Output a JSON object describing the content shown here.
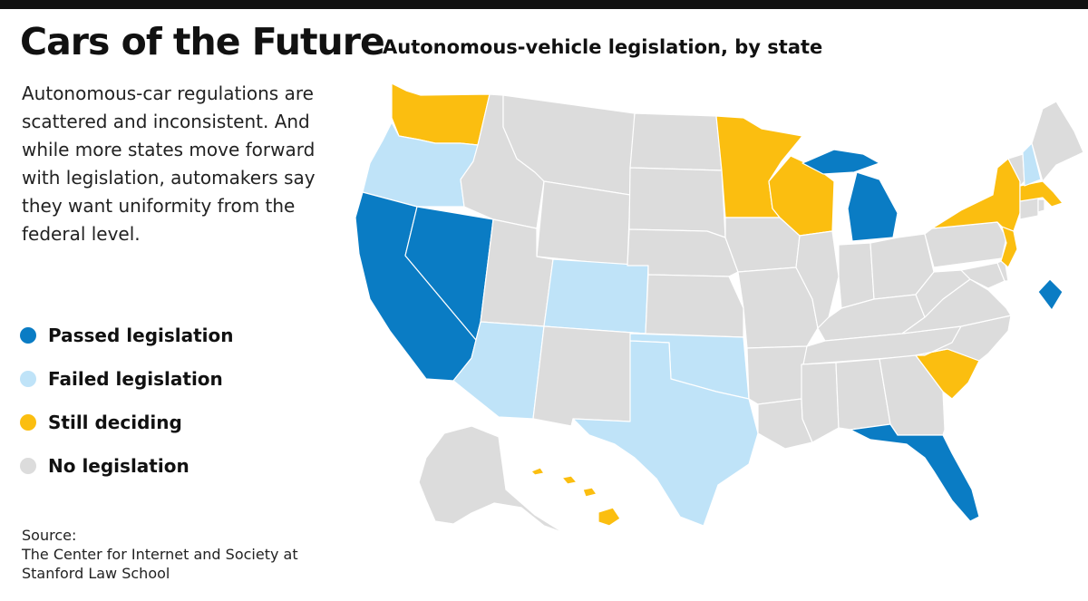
{
  "headline": "Cars of the Future",
  "subhead": "Autonomous-vehicle legislation, by state",
  "intro": "Autonomous-car regulations are scattered and inconsistent. And while more states move forward with legislation, automakers say they want uniformity from the federal level.",
  "legend": [
    {
      "key": "passed",
      "label": "Passed legislation",
      "color": "#0a7cc4"
    },
    {
      "key": "failed",
      "label": "Failed legislation",
      "color": "#bfe3f8"
    },
    {
      "key": "deciding",
      "label": "Still deciding",
      "color": "#fbbe10"
    },
    {
      "key": "none",
      "label": "No legislation",
      "color": "#dcdcdc"
    }
  ],
  "source": {
    "label": "Source:",
    "line1": "The Center for Internet and Society at",
    "line2": "Stanford Law School"
  },
  "states": {
    "WA": "deciding",
    "OR": "failed",
    "CA": "passed",
    "NV": "passed",
    "ID": "none",
    "MT": "none",
    "WY": "none",
    "UT": "none",
    "AZ": "failed",
    "CO": "failed",
    "NM": "none",
    "ND": "none",
    "SD": "none",
    "NE": "none",
    "KS": "none",
    "OK": "failed",
    "TX": "failed",
    "MN": "deciding",
    "IA": "none",
    "MO": "none",
    "AR": "none",
    "LA": "none",
    "WI": "deciding",
    "IL": "none",
    "MI": "passed",
    "IN": "none",
    "OH": "none",
    "KY": "none",
    "TN": "none",
    "MS": "none",
    "AL": "none",
    "GA": "none",
    "FL": "passed",
    "SC": "deciding",
    "NC": "none",
    "VA": "none",
    "WV": "none",
    "PA": "none",
    "NY": "deciding",
    "NJ": "deciding",
    "DE": "none",
    "MD": "none",
    "DC": "passed",
    "CT": "none",
    "RI": "none",
    "MA": "deciding",
    "VT": "none",
    "NH": "failed",
    "ME": "none",
    "AK": "none",
    "HI": "deciding"
  }
}
